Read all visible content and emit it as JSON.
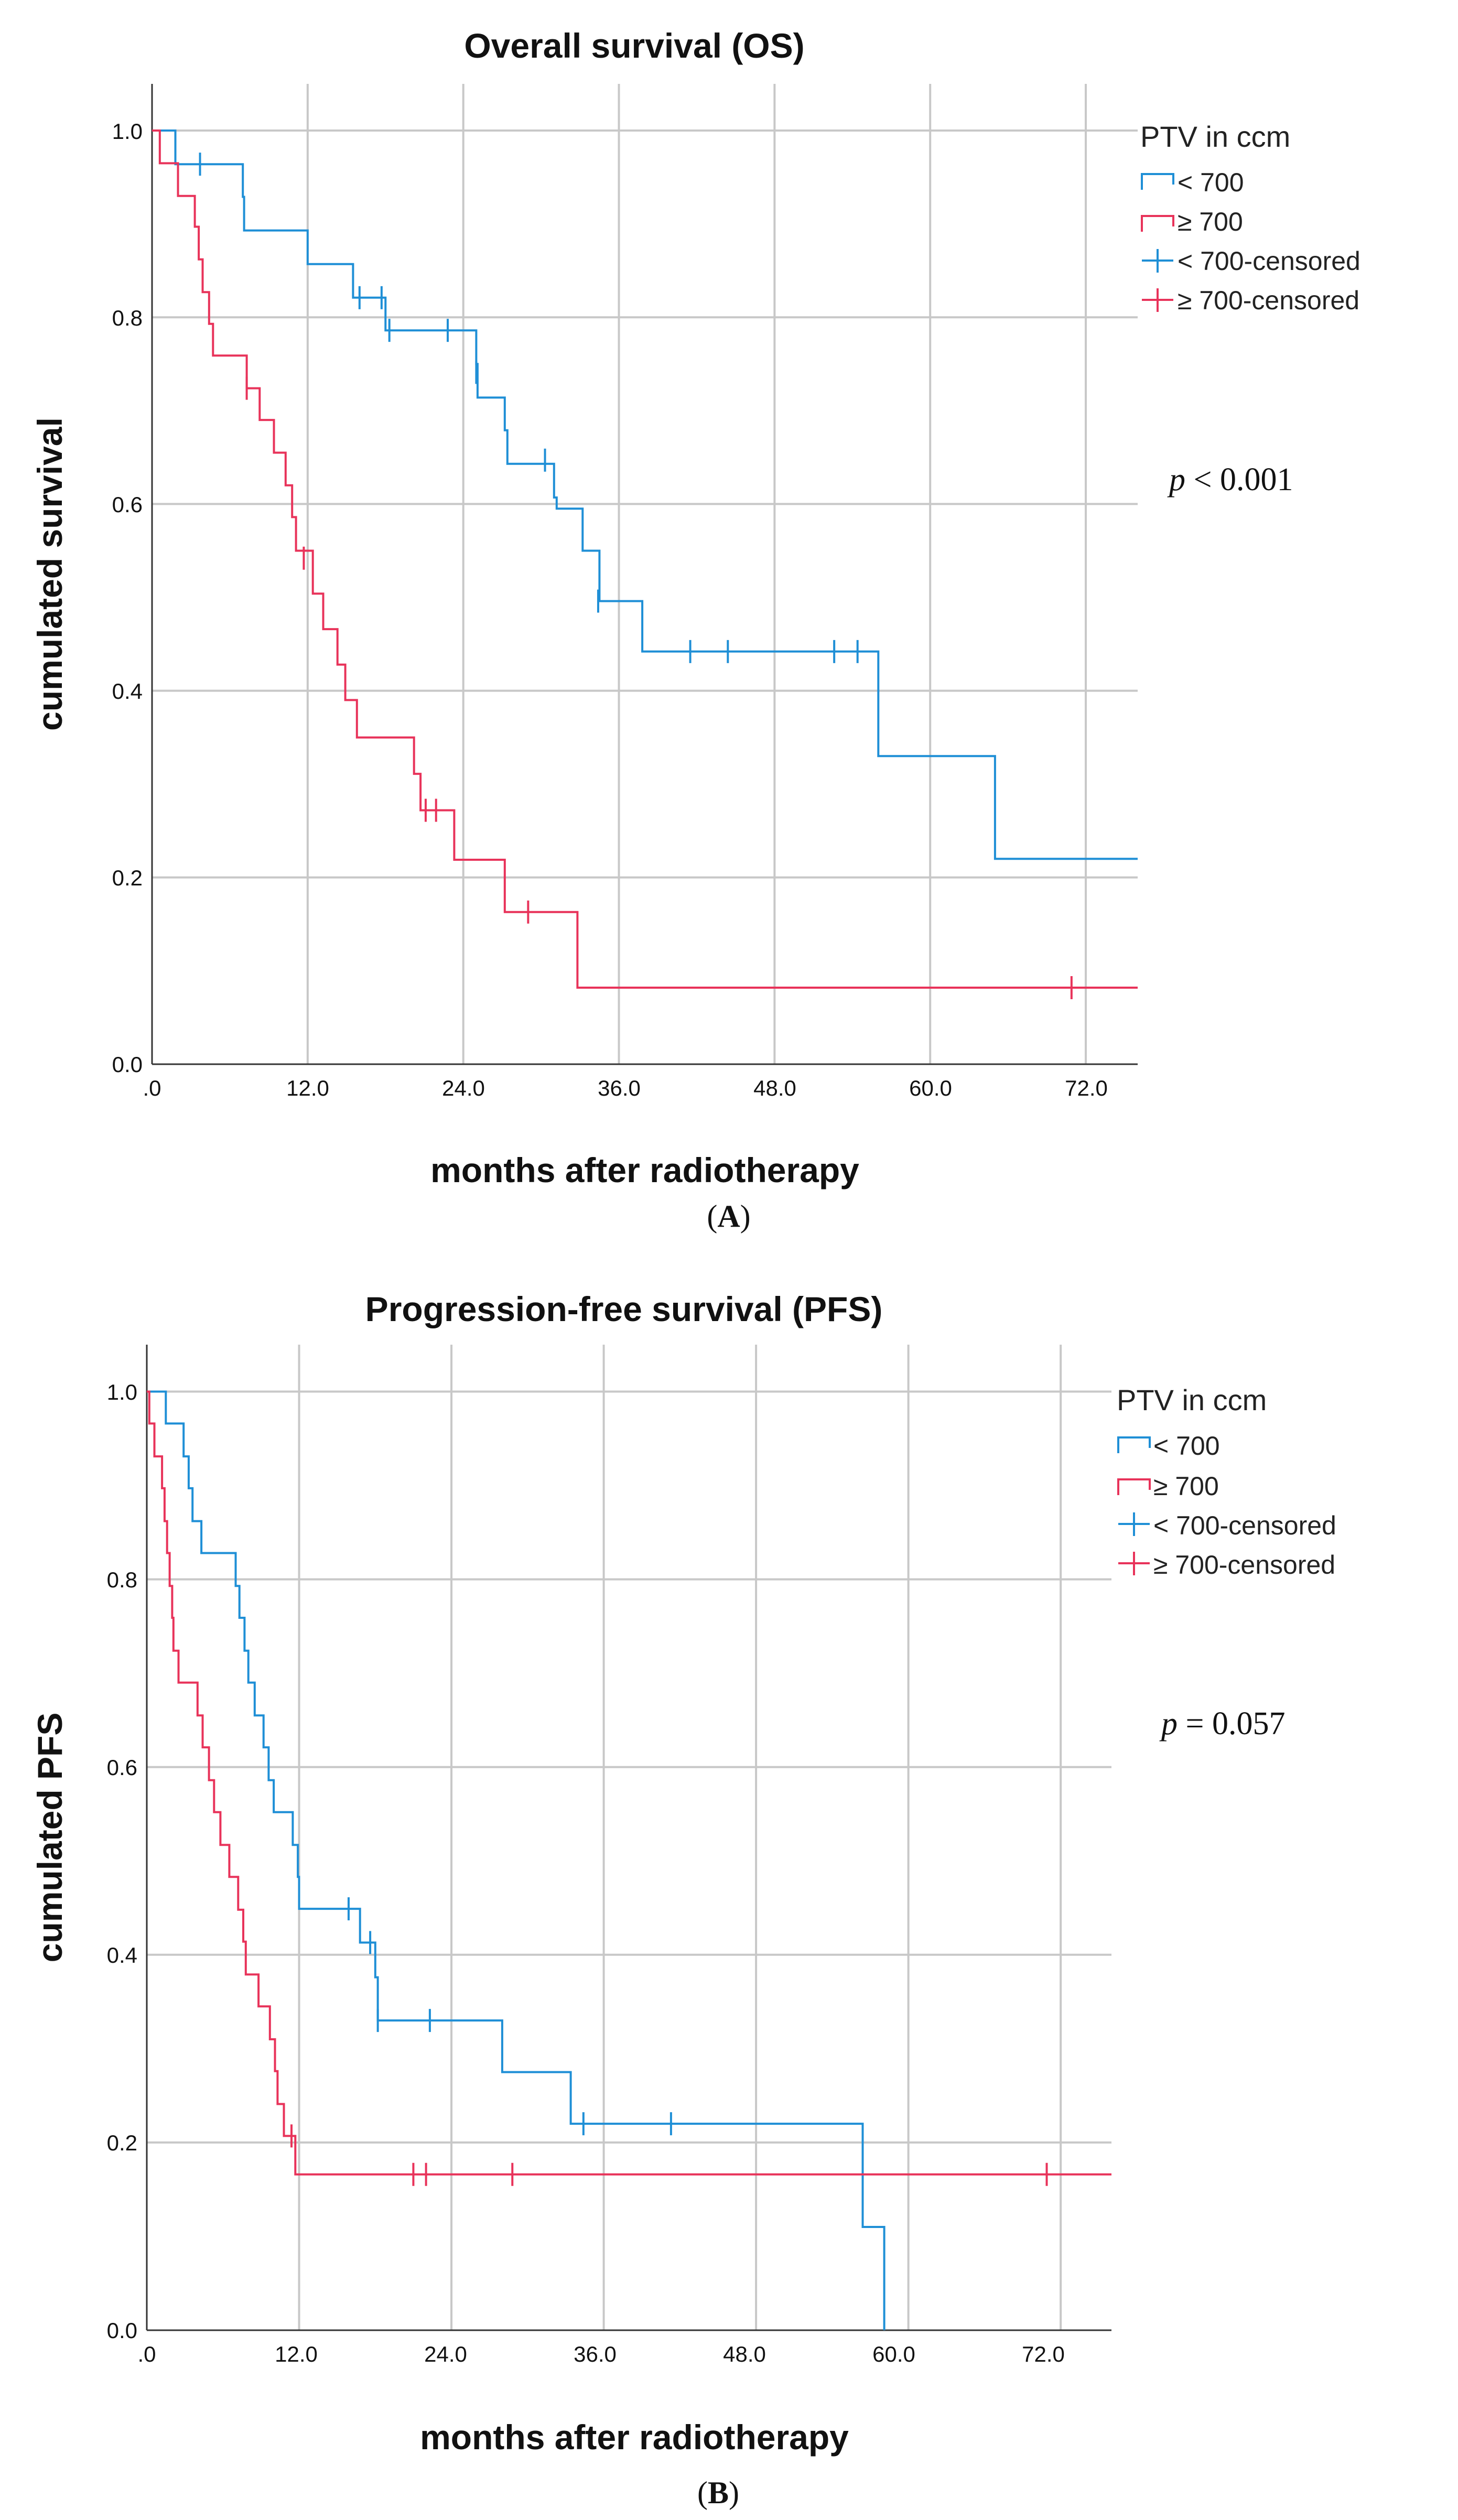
{
  "chart_data": [
    {
      "type": "line",
      "panel": "A",
      "title": "Overall survival (OS)",
      "xlabel": "months after radiotherapy",
      "ylabel": "cumulated survival",
      "xlim": [
        0,
        76
      ],
      "ylim": [
        0,
        1.05
      ],
      "xticks": [
        ".0",
        "12.0",
        "24.0",
        "36.0",
        "48.0",
        "60.0",
        "72.0"
      ],
      "yticks": [
        "0.0",
        "0.2",
        "0.4",
        "0.6",
        "0.8",
        "1.0"
      ],
      "grid": true,
      "legend": {
        "title": "PTV in ccm",
        "position": "top-right",
        "entries": [
          "< 700",
          "≥ 700",
          "< 700-censored",
          "≥ 700-censored"
        ]
      },
      "annotation": {
        "italic": "p",
        "text": " < 0.001"
      },
      "series": [
        {
          "name": "< 700",
          "color": "#1f8fd6",
          "steps": [
            [
              0,
              1.0
            ],
            [
              1.8,
              0.964
            ],
            [
              7.0,
              0.929
            ],
            [
              7.1,
              0.893
            ],
            [
              12.0,
              0.857
            ],
            [
              15.5,
              0.821
            ],
            [
              18.0,
              0.786
            ],
            [
              25.0,
              0.75
            ],
            [
              25.1,
              0.714
            ],
            [
              27.2,
              0.679
            ],
            [
              27.4,
              0.643
            ],
            [
              31.0,
              0.607
            ],
            [
              31.2,
              0.595
            ],
            [
              33.2,
              0.55
            ],
            [
              34.5,
              0.496
            ],
            [
              37.8,
              0.442
            ],
            [
              56.0,
              0.33
            ],
            [
              65.0,
              0.22
            ],
            [
              76,
              0.22
            ]
          ],
          "censored": [
            [
              3.7,
              0.964
            ],
            [
              16.0,
              0.821
            ],
            [
              17.7,
              0.821
            ],
            [
              18.3,
              0.786
            ],
            [
              22.8,
              0.786
            ],
            [
              25.0,
              0.741
            ],
            [
              30.3,
              0.647
            ],
            [
              34.4,
              0.496
            ],
            [
              41.5,
              0.442
            ],
            [
              44.4,
              0.442
            ],
            [
              52.6,
              0.442
            ],
            [
              54.4,
              0.442
            ]
          ]
        },
        {
          "name": "≥ 700",
          "color": "#e8335a",
          "steps": [
            [
              0,
              1.0
            ],
            [
              0.6,
              0.965
            ],
            [
              2.0,
              0.93
            ],
            [
              3.3,
              0.897
            ],
            [
              3.6,
              0.862
            ],
            [
              3.9,
              0.827
            ],
            [
              4.4,
              0.793
            ],
            [
              4.7,
              0.759
            ],
            [
              7.3,
              0.724
            ],
            [
              8.3,
              0.69
            ],
            [
              9.4,
              0.655
            ],
            [
              10.3,
              0.62
            ],
            [
              10.8,
              0.586
            ],
            [
              11.1,
              0.55
            ],
            [
              12.4,
              0.504
            ],
            [
              13.2,
              0.466
            ],
            [
              14.3,
              0.428
            ],
            [
              14.9,
              0.39
            ],
            [
              15.8,
              0.35
            ],
            [
              20.2,
              0.311
            ],
            [
              20.7,
              0.272
            ],
            [
              23.3,
              0.219
            ],
            [
              27.2,
              0.163
            ],
            [
              32.8,
              0.082
            ],
            [
              76,
              0.082
            ]
          ],
          "censored": [
            [
              7.3,
              0.724
            ],
            [
              11.7,
              0.542
            ],
            [
              21.1,
              0.272
            ],
            [
              21.9,
              0.272
            ],
            [
              29.0,
              0.163
            ],
            [
              70.9,
              0.082
            ]
          ]
        }
      ]
    },
    {
      "type": "line",
      "panel": "B",
      "title": "Progression-free survival (PFS)",
      "xlabel": "months after radiotherapy",
      "ylabel": "cumulated PFS",
      "xlim": [
        0,
        76
      ],
      "ylim": [
        0,
        1.05
      ],
      "xticks": [
        ".0",
        "12.0",
        "24.0",
        "36.0",
        "48.0",
        "60.0",
        "72.0"
      ],
      "yticks": [
        "0.0",
        "0.2",
        "0.4",
        "0.6",
        "0.8",
        "1.0"
      ],
      "grid": true,
      "legend": {
        "title": "PTV in ccm",
        "position": "top-right",
        "entries": [
          "< 700",
          "≥ 700",
          "< 700-censored",
          "≥ 700-censored"
        ]
      },
      "annotation": {
        "italic": "p",
        "text": " = 0.057"
      },
      "series": [
        {
          "name": "< 700",
          "color": "#1f8fd6",
          "steps": [
            [
              0,
              1.0
            ],
            [
              1.5,
              0.966
            ],
            [
              2.9,
              0.931
            ],
            [
              3.3,
              0.897
            ],
            [
              3.6,
              0.862
            ],
            [
              4.3,
              0.828
            ],
            [
              7.0,
              0.793
            ],
            [
              7.3,
              0.759
            ],
            [
              7.7,
              0.724
            ],
            [
              8.0,
              0.69
            ],
            [
              8.5,
              0.655
            ],
            [
              9.2,
              0.621
            ],
            [
              9.6,
              0.586
            ],
            [
              10.0,
              0.552
            ],
            [
              11.5,
              0.517
            ],
            [
              11.9,
              0.483
            ],
            [
              12.0,
              0.449
            ],
            [
              16.8,
              0.413
            ],
            [
              18.0,
              0.376
            ],
            [
              18.2,
              0.33
            ],
            [
              28.0,
              0.275
            ],
            [
              33.4,
              0.22
            ],
            [
              56.4,
              0.11
            ],
            [
              58.1,
              0.0
            ]
          ],
          "censored": [
            [
              15.9,
              0.449
            ],
            [
              17.6,
              0.413
            ],
            [
              18.2,
              0.33
            ],
            [
              22.3,
              0.33
            ],
            [
              34.4,
              0.22
            ],
            [
              41.3,
              0.22
            ]
          ]
        },
        {
          "name": "≥ 700",
          "color": "#e8335a",
          "steps": [
            [
              0,
              1.0
            ],
            [
              0.2,
              0.966
            ],
            [
              0.6,
              0.931
            ],
            [
              1.2,
              0.897
            ],
            [
              1.4,
              0.862
            ],
            [
              1.6,
              0.828
            ],
            [
              1.8,
              0.793
            ],
            [
              2.0,
              0.759
            ],
            [
              2.1,
              0.724
            ],
            [
              2.5,
              0.69
            ],
            [
              4.0,
              0.655
            ],
            [
              4.4,
              0.621
            ],
            [
              4.9,
              0.586
            ],
            [
              5.3,
              0.552
            ],
            [
              5.8,
              0.517
            ],
            [
              6.5,
              0.483
            ],
            [
              7.2,
              0.448
            ],
            [
              7.6,
              0.414
            ],
            [
              7.8,
              0.379
            ],
            [
              8.8,
              0.345
            ],
            [
              9.7,
              0.31
            ],
            [
              10.1,
              0.276
            ],
            [
              10.3,
              0.241
            ],
            [
              10.8,
              0.207
            ],
            [
              11.7,
              0.166
            ],
            [
              76,
              0.166
            ]
          ],
          "censored": [
            [
              11.4,
              0.207
            ],
            [
              21.0,
              0.166
            ],
            [
              22.0,
              0.166
            ],
            [
              28.8,
              0.166
            ],
            [
              70.9,
              0.166
            ]
          ]
        }
      ]
    }
  ],
  "panel_labels": [
    "A",
    "B"
  ]
}
